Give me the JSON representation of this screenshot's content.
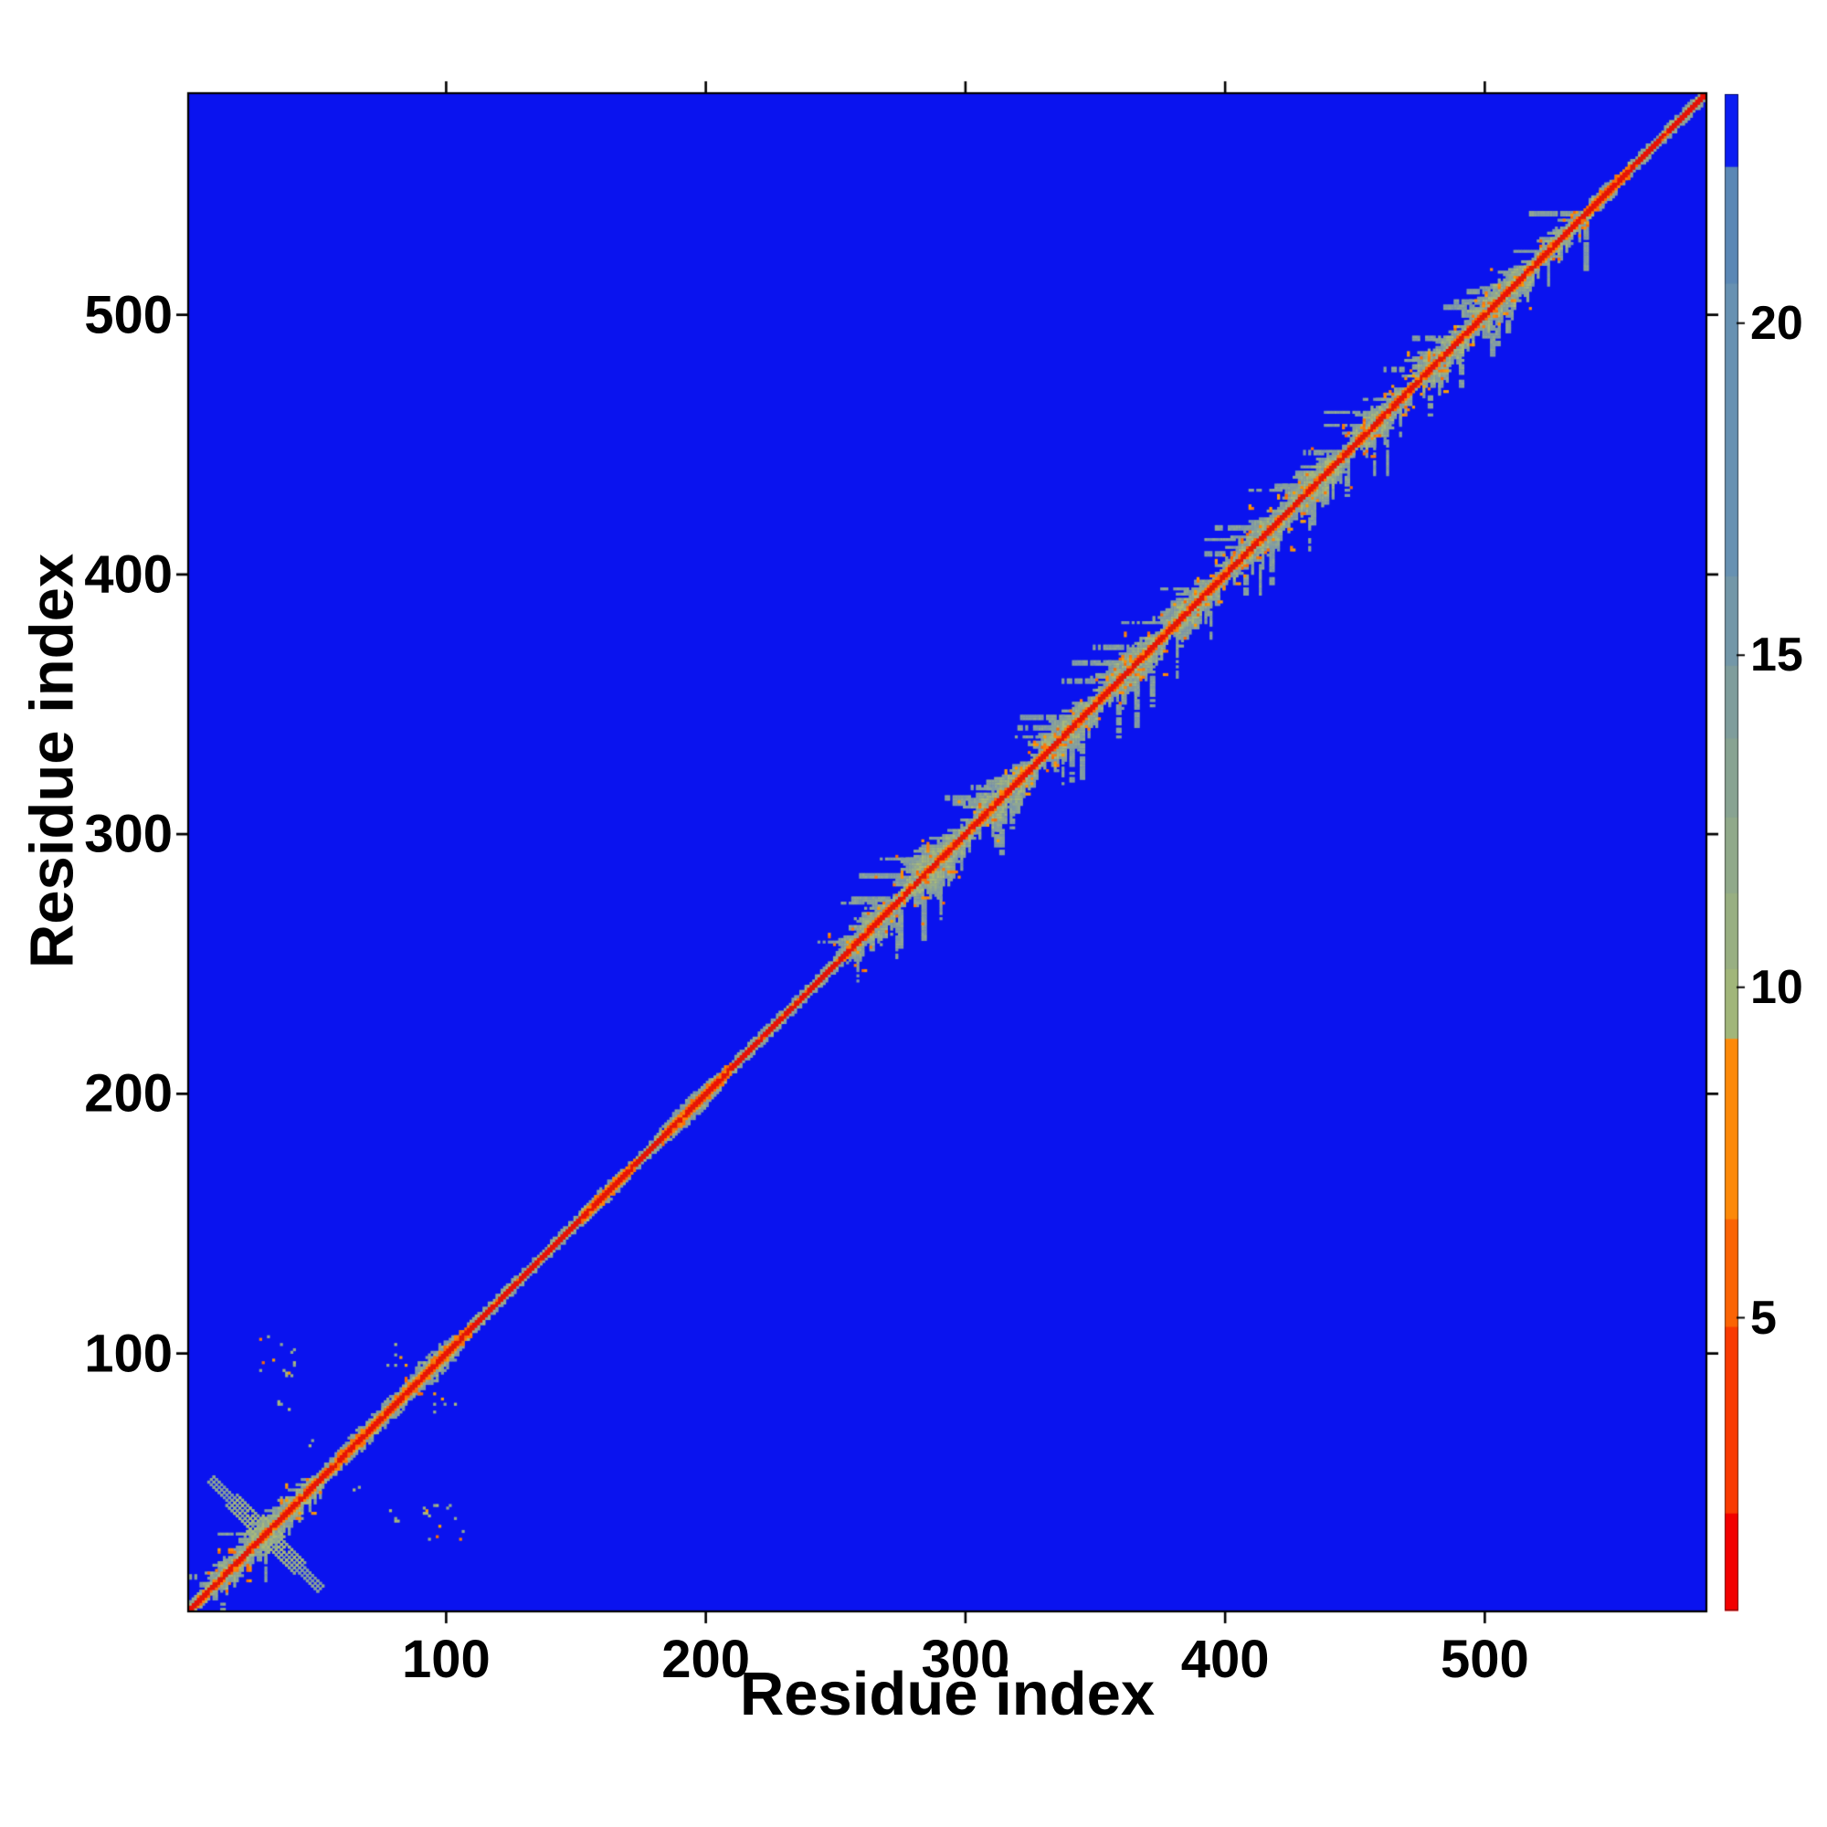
{
  "figure": {
    "background": "#ffffff"
  },
  "chart_data": {
    "type": "heatmap",
    "subtype": "protein-residue-distance-map",
    "title": "",
    "xlabel": "Residue index",
    "ylabel": "Residue index",
    "n_residues": 584,
    "x_range": [
      1,
      584
    ],
    "y_range": [
      1,
      584
    ],
    "x_ticks": [
      100,
      200,
      300,
      400,
      500
    ],
    "y_ticks": [
      100,
      200,
      300,
      400,
      500
    ],
    "grid": false,
    "seed": 1337,
    "colors": {
      "background_high": "#0a13ef",
      "diag_red": "#ef1004",
      "diag_red2": "#e51504",
      "diag_orange": "#fb6f03",
      "diag_orange2": "#fd8506",
      "green_core": [
        "#a2b581",
        "#98ae8a",
        "#8fa792",
        "#a9ba7a"
      ],
      "green_edge": [
        "#7f99a7",
        "#87a09c",
        "#90a794"
      ],
      "orange_speckle": [
        "#fd8d06",
        "#fa7a0b",
        "#fb6a04",
        "#f99d05"
      ],
      "axis_color": "#000000"
    },
    "colorbar": {
      "ticks": [
        {
          "value": 20,
          "frac": 0.151
        },
        {
          "value": 15,
          "frac": 0.37
        },
        {
          "value": 10,
          "frac": 0.589
        },
        {
          "value": 5,
          "frac": 0.807
        }
      ],
      "segments": [
        {
          "color": "#0b1df2",
          "frac": 0.048
        },
        {
          "color": "#5a87b5",
          "frac": 0.077
        },
        {
          "color": "#6791b2",
          "frac": 0.193
        },
        {
          "color": "#7397a8",
          "frac": 0.059
        },
        {
          "color": "#7f9d9c",
          "frac": 0.048
        },
        {
          "color": "#88a392",
          "frac": 0.052
        },
        {
          "color": "#90a98a",
          "frac": 0.05
        },
        {
          "color": "#98af82",
          "frac": 0.05
        },
        {
          "color": "#a1b67a",
          "frac": 0.046
        },
        {
          "color": "#fd8908",
          "frac": 0.119
        },
        {
          "color": "#fb6404",
          "frac": 0.071
        },
        {
          "color": "#f93a02",
          "frac": 0.123
        },
        {
          "color": "#f20000",
          "frac": 0.064
        }
      ]
    },
    "diagonal": {
      "red_halfwidth": 1.25,
      "orange_halfwidth": 1.7,
      "green_halfwidth": 2.3
    },
    "clusters": [
      {
        "c": 30,
        "e": 26,
        "w": 9,
        "type": "cross",
        "speckles": 16,
        "spikes": 2,
        "arm": 21
      },
      {
        "c": 72,
        "e": 20,
        "w": 5,
        "type": "bulge",
        "speckles": 2,
        "spikes": 0
      },
      {
        "c": 96,
        "e": 13,
        "w": 6,
        "type": "bulge",
        "speckles": 3,
        "spikes": 0
      },
      {
        "c": 162,
        "e": 10,
        "w": 4,
        "type": "bulge",
        "speckles": 0,
        "spikes": 0
      },
      {
        "c": 196,
        "e": 13,
        "w": 5,
        "type": "bulge",
        "speckles": 1,
        "spikes": 0
      },
      {
        "c": 266,
        "e": 13,
        "w": 9,
        "type": "star",
        "speckles": 10,
        "spikes": 3
      },
      {
        "c": 291,
        "e": 13,
        "w": 11,
        "type": "star",
        "speckles": 12,
        "spikes": 3
      },
      {
        "c": 316,
        "e": 13,
        "w": 10,
        "type": "star",
        "speckles": 11,
        "spikes": 3
      },
      {
        "c": 341,
        "e": 13,
        "w": 10,
        "type": "star",
        "speckles": 11,
        "spikes": 3
      },
      {
        "c": 366,
        "e": 13,
        "w": 10,
        "type": "star",
        "speckles": 11,
        "spikes": 3
      },
      {
        "c": 390,
        "e": 12,
        "w": 9,
        "type": "star",
        "speckles": 10,
        "spikes": 3
      },
      {
        "c": 414,
        "e": 13,
        "w": 10,
        "type": "star",
        "speckles": 11,
        "spikes": 3
      },
      {
        "c": 438,
        "e": 13,
        "w": 10,
        "type": "star",
        "speckles": 11,
        "spikes": 3
      },
      {
        "c": 462,
        "e": 12,
        "w": 9,
        "type": "star",
        "speckles": 10,
        "spikes": 3
      },
      {
        "c": 486,
        "e": 13,
        "w": 10,
        "type": "star",
        "speckles": 11,
        "spikes": 3
      },
      {
        "c": 509,
        "e": 13,
        "w": 11,
        "type": "star",
        "speckles": 12,
        "spikes": 3
      },
      {
        "c": 531,
        "e": 10,
        "w": 7,
        "type": "star",
        "speckles": 7,
        "spikes": 2
      },
      {
        "c": 548,
        "e": 7,
        "w": 4,
        "type": "bulge",
        "speckles": 1,
        "spikes": 0
      }
    ],
    "offdiag_speckles": [
      {
        "i": 99,
        "j": 35,
        "count": 12,
        "spread": 8
      },
      {
        "i": 81,
        "j": 36,
        "count": 4,
        "spread": 4
      },
      {
        "i": 98,
        "j": 81,
        "count": 6,
        "spread": 5
      },
      {
        "i": 92,
        "j": 38,
        "count": 3,
        "spread": 3
      },
      {
        "i": 66,
        "j": 47,
        "count": 2,
        "spread": 2
      }
    ]
  }
}
